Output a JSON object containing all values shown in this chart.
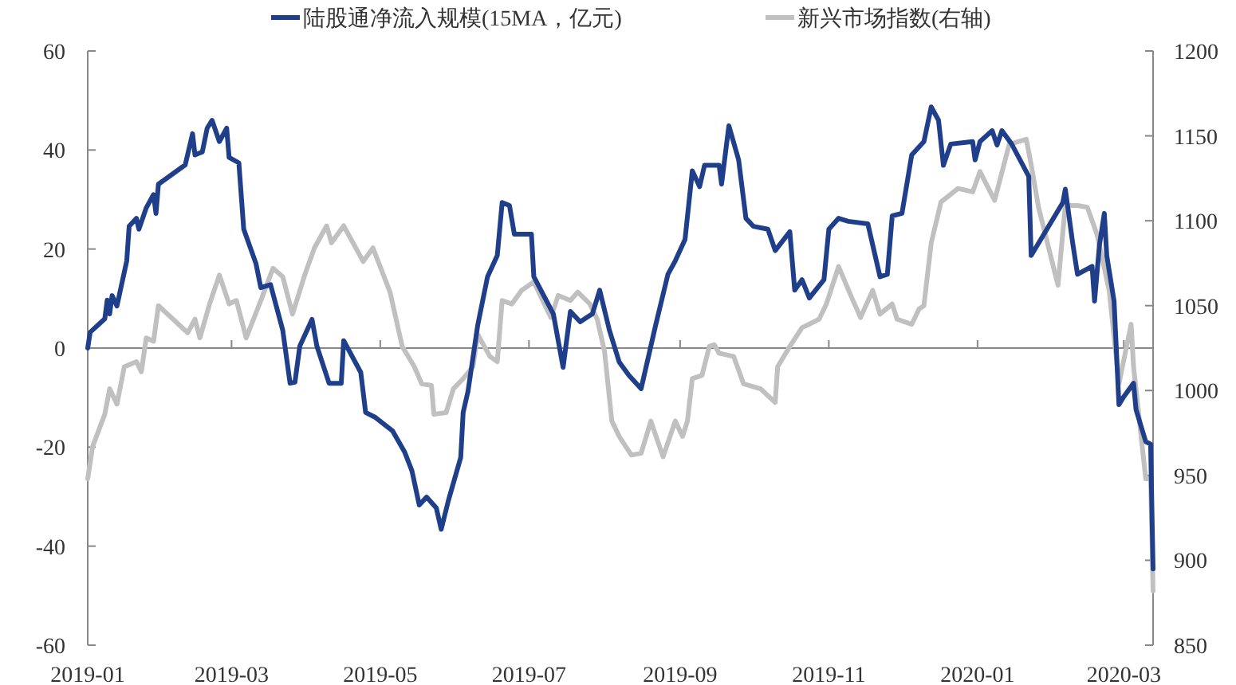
{
  "chart_data": {
    "type": "line",
    "legend": "top",
    "xlim": [
      "2019-01-01",
      "2020-03-13"
    ],
    "xticks": [
      "2019-01",
      "2019-03",
      "2019-05",
      "2019-07",
      "2019-09",
      "2019-11",
      "2020-01",
      "2020-03"
    ],
    "ylim": [
      -60,
      60
    ],
    "yticks": [
      -60,
      -40,
      -20,
      0,
      20,
      40,
      60
    ],
    "y2lim": [
      850,
      1200
    ],
    "y2ticks": [
      850,
      900,
      950,
      1000,
      1050,
      1100,
      1150,
      1200
    ],
    "series": [
      {
        "name": "陆股通净流入规模(15MA，亿元)",
        "color": "#1f3f8a",
        "x": [
          "2019-01-01",
          "2019-01-02",
          "2019-01-08",
          "2019-01-09",
          "2019-01-10",
          "2019-01-11",
          "2019-01-13",
          "2019-01-17",
          "2019-01-18",
          "2019-01-21",
          "2019-01-22",
          "2019-01-25",
          "2019-01-28",
          "2019-01-29",
          "2019-01-30",
          "2019-02-10",
          "2019-02-13",
          "2019-02-14",
          "2019-02-17",
          "2019-02-19",
          "2019-02-21",
          "2019-02-24",
          "2019-02-27",
          "2019-02-28",
          "2019-03-04",
          "2019-03-06",
          "2019-03-11",
          "2019-03-13",
          "2019-03-17",
          "2019-03-22",
          "2019-03-25",
          "2019-03-27",
          "2019-03-29",
          "2019-04-03",
          "2019-04-05",
          "2019-04-10",
          "2019-04-15",
          "2019-04-16",
          "2019-04-23",
          "2019-04-25",
          "2019-04-29",
          "2019-05-06",
          "2019-05-11",
          "2019-05-14",
          "2019-05-17",
          "2019-05-20",
          "2019-05-24",
          "2019-05-26",
          "2019-05-29",
          "2019-06-03",
          "2019-06-04",
          "2019-06-06",
          "2019-06-10",
          "2019-06-14",
          "2019-06-18",
          "2019-06-20",
          "2019-06-23",
          "2019-06-25",
          "2019-07-02",
          "2019-07-03",
          "2019-07-11",
          "2019-07-15",
          "2019-07-18",
          "2019-07-22",
          "2019-07-27",
          "2019-07-30",
          "2019-08-03",
          "2019-08-07",
          "2019-08-11",
          "2019-08-16",
          "2019-08-22",
          "2019-08-27",
          "2019-08-30",
          "2019-09-03",
          "2019-09-06",
          "2019-09-09",
          "2019-09-11",
          "2019-09-17",
          "2019-09-18",
          "2019-09-21",
          "2019-09-25",
          "2019-09-28",
          "2019-10-01",
          "2019-10-07",
          "2019-10-10",
          "2019-10-16",
          "2019-10-18",
          "2019-10-21",
          "2019-10-24",
          "2019-10-30",
          "2019-11-01",
          "2019-11-05",
          "2019-11-09",
          "2019-11-17",
          "2019-11-22",
          "2019-11-25",
          "2019-11-27",
          "2019-12-01",
          "2019-12-05",
          "2019-12-10",
          "2019-12-13",
          "2019-12-16",
          "2019-12-18",
          "2019-12-21",
          "2019-12-30",
          "2019-12-31",
          "2020-01-02",
          "2020-01-07",
          "2020-01-09",
          "2020-01-11",
          "2020-01-15",
          "2020-01-22",
          "2020-01-23",
          "2020-02-05",
          "2020-02-06",
          "2020-02-09",
          "2020-02-11",
          "2020-02-17",
          "2020-02-18",
          "2020-02-20",
          "2020-02-22",
          "2020-02-23",
          "2020-02-26",
          "2020-02-28",
          "2020-03-01",
          "2020-03-05",
          "2020-03-06",
          "2020-03-10",
          "2020-03-12",
          "2020-03-13"
        ],
        "values": [
          0,
          3.2,
          5.9,
          9.7,
          6.9,
          10.6,
          8.5,
          17.6,
          24.6,
          26.2,
          24.0,
          28.3,
          31.0,
          27.2,
          33.1,
          37.0,
          43.3,
          39.0,
          39.6,
          44.4,
          46.0,
          41.7,
          44.4,
          38.5,
          37.4,
          24.0,
          17.1,
          12.2,
          12.8,
          3.6,
          -7.1,
          -6.9,
          0.4,
          5.8,
          0.4,
          -7.1,
          -7.1,
          1.5,
          -4.9,
          -13.0,
          -14.0,
          -16.7,
          -21.0,
          -24.8,
          -31.7,
          -30.1,
          -32.3,
          -36.6,
          -30.7,
          -22.1,
          -13.0,
          -8.7,
          4.7,
          14.4,
          18.7,
          29.4,
          28.8,
          23.0,
          23.0,
          14.4,
          6.9,
          -3.9,
          7.4,
          5.3,
          6.9,
          11.7,
          3.6,
          -2.8,
          -5.5,
          -8.2,
          4.7,
          14.9,
          17.6,
          21.9,
          35.8,
          32.6,
          36.9,
          36.9,
          33.1,
          44.9,
          38.0,
          26.2,
          24.6,
          24.0,
          19.7,
          23.5,
          11.7,
          13.8,
          10.1,
          13.8,
          24.0,
          26.2,
          25.6,
          25.1,
          14.4,
          14.9,
          26.7,
          27.2,
          39.0,
          41.7,
          48.7,
          46.0,
          36.9,
          41.2,
          41.7,
          38.0,
          41.7,
          43.9,
          41.0,
          43.9,
          41.2,
          34.7,
          18.7,
          29.4,
          32.1,
          21.3,
          14.9,
          16.5,
          9.5,
          20.8,
          27.2,
          18.7,
          9.5,
          -11.4,
          -9.8,
          -7.1,
          -12.4,
          -18.9,
          -19.4,
          -44.6
        ]
      },
      {
        "name": "新兴市场指数(右轴)",
        "color": "#c0c0c0",
        "axis": "y2",
        "x": [
          "2019-01-01",
          "2019-01-03",
          "2019-01-08",
          "2019-01-10",
          "2019-01-13",
          "2019-01-16",
          "2019-01-21",
          "2019-01-23",
          "2019-01-25",
          "2019-01-28",
          "2019-01-30",
          "2019-02-11",
          "2019-02-14",
          "2019-02-16",
          "2019-02-20",
          "2019-02-24",
          "2019-02-28",
          "2019-03-03",
          "2019-03-07",
          "2019-03-13",
          "2019-03-18",
          "2019-03-22",
          "2019-03-26",
          "2019-03-31",
          "2019-04-04",
          "2019-04-09",
          "2019-04-11",
          "2019-04-16",
          "2019-04-24",
          "2019-04-28",
          "2019-05-05",
          "2019-05-10",
          "2019-05-15",
          "2019-05-18",
          "2019-05-22",
          "2019-05-23",
          "2019-05-28",
          "2019-05-31",
          "2019-06-04",
          "2019-06-08",
          "2019-06-10",
          "2019-06-15",
          "2019-06-18",
          "2019-06-20",
          "2019-06-24",
          "2019-06-28",
          "2019-07-03",
          "2019-07-10",
          "2019-07-13",
          "2019-07-18",
          "2019-07-21",
          "2019-07-26",
          "2019-07-29",
          "2019-08-01",
          "2019-08-04",
          "2019-08-07",
          "2019-08-12",
          "2019-08-16",
          "2019-08-20",
          "2019-08-25",
          "2019-08-30",
          "2019-09-02",
          "2019-09-04",
          "2019-09-06",
          "2019-09-10",
          "2019-09-13",
          "2019-09-15",
          "2019-09-17",
          "2019-09-23",
          "2019-09-27",
          "2019-10-04",
          "2019-10-10",
          "2019-10-11",
          "2019-10-16",
          "2019-10-21",
          "2019-10-28",
          "2019-10-31",
          "2019-11-05",
          "2019-11-10",
          "2019-11-14",
          "2019-11-19",
          "2019-11-22",
          "2019-11-27",
          "2019-11-29",
          "2019-12-05",
          "2019-12-08",
          "2019-12-10",
          "2019-12-13",
          "2019-12-17",
          "2019-12-24",
          "2019-12-30",
          "2020-01-02",
          "2020-01-08",
          "2020-01-14",
          "2020-01-21",
          "2020-01-23",
          "2020-01-26",
          "2020-02-03",
          "2020-02-06",
          "2020-02-11",
          "2020-02-15",
          "2020-02-19",
          "2020-02-24",
          "2020-02-28",
          "2020-03-04",
          "2020-03-05",
          "2020-03-10",
          "2020-03-12",
          "2020-03-13"
        ],
        "values": [
          948,
          967,
          986,
          1001,
          992,
          1014,
          1017,
          1011,
          1031,
          1029,
          1050,
          1034,
          1042,
          1031,
          1051,
          1068,
          1051,
          1053,
          1031,
          1053,
          1072,
          1067,
          1045,
          1068,
          1084,
          1097,
          1087,
          1097,
          1076,
          1084,
          1058,
          1026,
          1014,
          1004,
          1003,
          986,
          987,
          1001,
          1007,
          1014,
          1033,
          1020,
          1017,
          1053,
          1051,
          1059,
          1064,
          1043,
          1056,
          1053,
          1058,
          1051,
          1042,
          1023,
          982,
          973,
          962,
          963,
          982,
          961,
          982,
          973,
          982,
          1007,
          1009,
          1026,
          1027,
          1022,
          1020,
          1004,
          1001,
          993,
          1014,
          1026,
          1037,
          1042,
          1051,
          1073,
          1056,
          1043,
          1059,
          1045,
          1051,
          1042,
          1039,
          1048,
          1050,
          1087,
          1111,
          1119,
          1117,
          1129,
          1112,
          1145,
          1148,
          1133,
          1108,
          1062,
          1109,
          1109,
          1108,
          1092,
          1059,
          1004,
          1039,
          1014,
          948,
          948,
          882
        ]
      }
    ]
  }
}
